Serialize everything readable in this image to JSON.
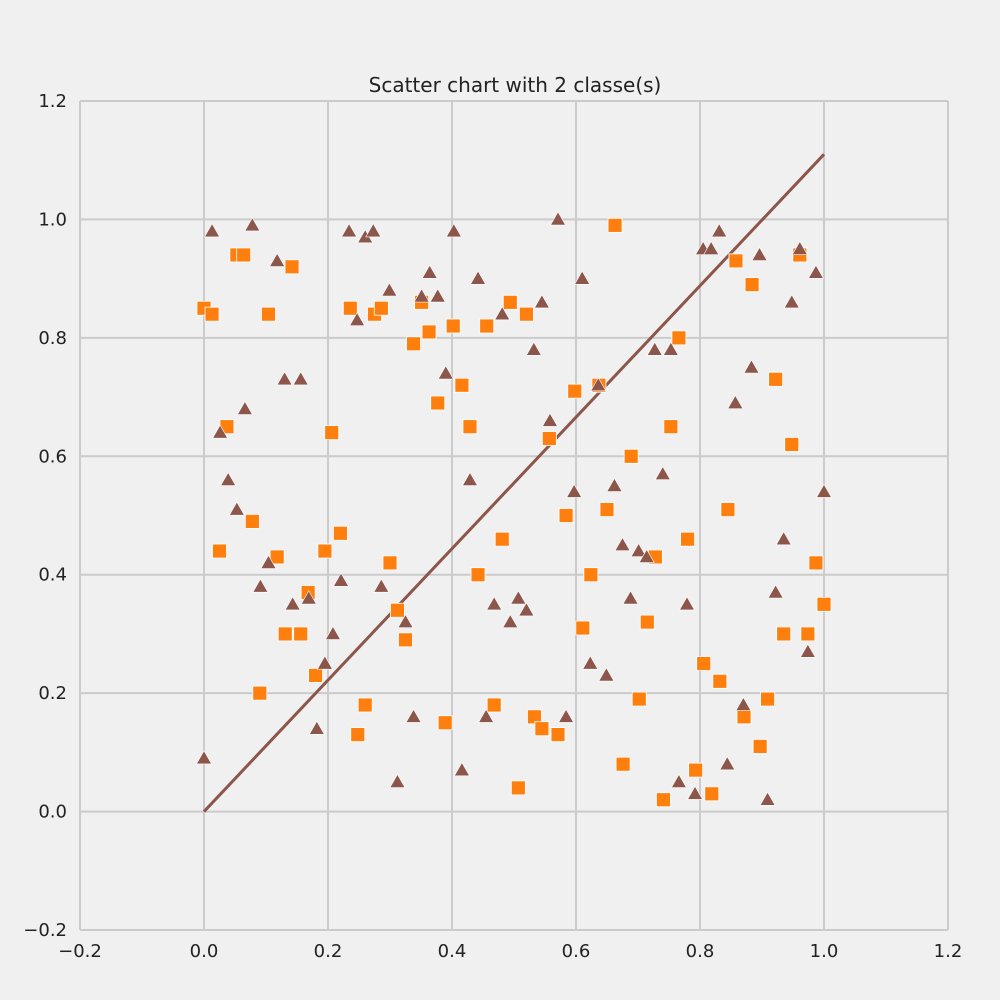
{
  "chart_data": {
    "type": "scatter",
    "title": "Scatter chart with 2 classe(s)",
    "xlabel": "",
    "ylabel": "",
    "xlim": [
      -0.2,
      1.2
    ],
    "ylim": [
      -0.2,
      1.2
    ],
    "xticks": [
      "−0.2",
      "0.0",
      "0.2",
      "0.4",
      "0.6",
      "0.8",
      "1.0",
      "1.2"
    ],
    "yticks": [
      "−0.2",
      "0.0",
      "0.2",
      "0.4",
      "0.6",
      "0.8",
      "1.0",
      "1.2"
    ],
    "grid": true,
    "legend": "none",
    "colors": {
      "background": "#f0f0f0",
      "grid": "#cbcbcb",
      "line": "#8c564b",
      "squares": "#ff7f0e",
      "triangles": "#8c564b"
    },
    "line": {
      "x": [
        0.0,
        1.0
      ],
      "y": [
        0.0,
        1.11
      ]
    },
    "series": [
      {
        "marker": "square",
        "color": "#ff7f0e",
        "points": [
          [
            0.0,
            0.85
          ],
          [
            0.013,
            0.84
          ],
          [
            0.053,
            0.94
          ],
          [
            0.064,
            0.94
          ],
          [
            0.104,
            0.84
          ],
          [
            0.142,
            0.92
          ],
          [
            0.037,
            0.65
          ],
          [
            0.078,
            0.49
          ],
          [
            0.025,
            0.44
          ],
          [
            0.118,
            0.43
          ],
          [
            0.09,
            0.2
          ],
          [
            0.131,
            0.3
          ],
          [
            0.156,
            0.3
          ],
          [
            0.168,
            0.37
          ],
          [
            0.18,
            0.23
          ],
          [
            0.195,
            0.44
          ],
          [
            0.206,
            0.64
          ],
          [
            0.22,
            0.47
          ],
          [
            0.236,
            0.85
          ],
          [
            0.275,
            0.84
          ],
          [
            0.286,
            0.85
          ],
          [
            0.26,
            0.18
          ],
          [
            0.248,
            0.13
          ],
          [
            0.3,
            0.42
          ],
          [
            0.312,
            0.34
          ],
          [
            0.325,
            0.29
          ],
          [
            0.338,
            0.79
          ],
          [
            0.351,
            0.86
          ],
          [
            0.363,
            0.81
          ],
          [
            0.377,
            0.69
          ],
          [
            0.389,
            0.15
          ],
          [
            0.402,
            0.82
          ],
          [
            0.416,
            0.72
          ],
          [
            0.429,
            0.65
          ],
          [
            0.442,
            0.4
          ],
          [
            0.456,
            0.82
          ],
          [
            0.468,
            0.18
          ],
          [
            0.481,
            0.46
          ],
          [
            0.494,
            0.86
          ],
          [
            0.507,
            0.04
          ],
          [
            0.52,
            0.84
          ],
          [
            0.533,
            0.16
          ],
          [
            0.545,
            0.14
          ],
          [
            0.557,
            0.63
          ],
          [
            0.571,
            0.13
          ],
          [
            0.584,
            0.5
          ],
          [
            0.598,
            0.71
          ],
          [
            0.611,
            0.31
          ],
          [
            0.624,
            0.4
          ],
          [
            0.637,
            0.72
          ],
          [
            0.65,
            0.51
          ],
          [
            0.663,
            0.99
          ],
          [
            0.676,
            0.08
          ],
          [
            0.689,
            0.6
          ],
          [
            0.702,
            0.19
          ],
          [
            0.715,
            0.32
          ],
          [
            0.728,
            0.43
          ],
          [
            0.741,
            0.02
          ],
          [
            0.753,
            0.65
          ],
          [
            0.766,
            0.8
          ],
          [
            0.78,
            0.46
          ],
          [
            0.793,
            0.07
          ],
          [
            0.806,
            0.25
          ],
          [
            0.819,
            0.03
          ],
          [
            0.832,
            0.22
          ],
          [
            0.845,
            0.51
          ],
          [
            0.858,
            0.93
          ],
          [
            0.871,
            0.16
          ],
          [
            0.884,
            0.89
          ],
          [
            0.897,
            0.11
          ],
          [
            0.909,
            0.19
          ],
          [
            0.922,
            0.73
          ],
          [
            0.935,
            0.3
          ],
          [
            0.948,
            0.62
          ],
          [
            0.961,
            0.94
          ],
          [
            0.974,
            0.3
          ],
          [
            0.987,
            0.42
          ],
          [
            1.0,
            0.35
          ]
        ]
      },
      {
        "marker": "triangle",
        "color": "#8c564b",
        "points": [
          [
            0.0,
            0.09
          ],
          [
            0.013,
            0.98
          ],
          [
            0.026,
            0.64
          ],
          [
            0.039,
            0.56
          ],
          [
            0.053,
            0.51
          ],
          [
            0.066,
            0.68
          ],
          [
            0.078,
            0.99
          ],
          [
            0.091,
            0.38
          ],
          [
            0.104,
            0.42
          ],
          [
            0.118,
            0.93
          ],
          [
            0.13,
            0.73
          ],
          [
            0.143,
            0.35
          ],
          [
            0.156,
            0.73
          ],
          [
            0.169,
            0.36
          ],
          [
            0.182,
            0.14
          ],
          [
            0.195,
            0.25
          ],
          [
            0.208,
            0.3
          ],
          [
            0.221,
            0.39
          ],
          [
            0.234,
            0.98
          ],
          [
            0.247,
            0.83
          ],
          [
            0.26,
            0.97
          ],
          [
            0.273,
            0.98
          ],
          [
            0.286,
            0.38
          ],
          [
            0.299,
            0.88
          ],
          [
            0.312,
            0.05
          ],
          [
            0.325,
            0.32
          ],
          [
            0.338,
            0.16
          ],
          [
            0.351,
            0.87
          ],
          [
            0.364,
            0.91
          ],
          [
            0.377,
            0.87
          ],
          [
            0.39,
            0.74
          ],
          [
            0.403,
            0.98
          ],
          [
            0.416,
            0.07
          ],
          [
            0.429,
            0.56
          ],
          [
            0.442,
            0.9
          ],
          [
            0.455,
            0.16
          ],
          [
            0.468,
            0.35
          ],
          [
            0.481,
            0.84
          ],
          [
            0.494,
            0.32
          ],
          [
            0.507,
            0.36
          ],
          [
            0.52,
            0.34
          ],
          [
            0.532,
            0.78
          ],
          [
            0.545,
            0.86
          ],
          [
            0.558,
            0.66
          ],
          [
            0.571,
            1.0
          ],
          [
            0.584,
            0.16
          ],
          [
            0.597,
            0.54
          ],
          [
            0.61,
            0.9
          ],
          [
            0.623,
            0.25
          ],
          [
            0.636,
            0.72
          ],
          [
            0.649,
            0.23
          ],
          [
            0.662,
            0.55
          ],
          [
            0.675,
            0.45
          ],
          [
            0.688,
            0.36
          ],
          [
            0.701,
            0.44
          ],
          [
            0.714,
            0.43
          ],
          [
            0.727,
            0.78
          ],
          [
            0.74,
            0.57
          ],
          [
            0.753,
            0.78
          ],
          [
            0.766,
            0.05
          ],
          [
            0.779,
            0.35
          ],
          [
            0.792,
            0.03
          ],
          [
            0.805,
            0.95
          ],
          [
            0.818,
            0.95
          ],
          [
            0.831,
            0.98
          ],
          [
            0.844,
            0.08
          ],
          [
            0.857,
            0.69
          ],
          [
            0.87,
            0.18
          ],
          [
            0.883,
            0.75
          ],
          [
            0.896,
            0.94
          ],
          [
            0.909,
            0.02
          ],
          [
            0.922,
            0.37
          ],
          [
            0.935,
            0.46
          ],
          [
            0.948,
            0.86
          ],
          [
            0.961,
            0.95
          ],
          [
            0.974,
            0.27
          ],
          [
            0.987,
            0.91
          ],
          [
            1.0,
            0.54
          ]
        ]
      }
    ]
  }
}
